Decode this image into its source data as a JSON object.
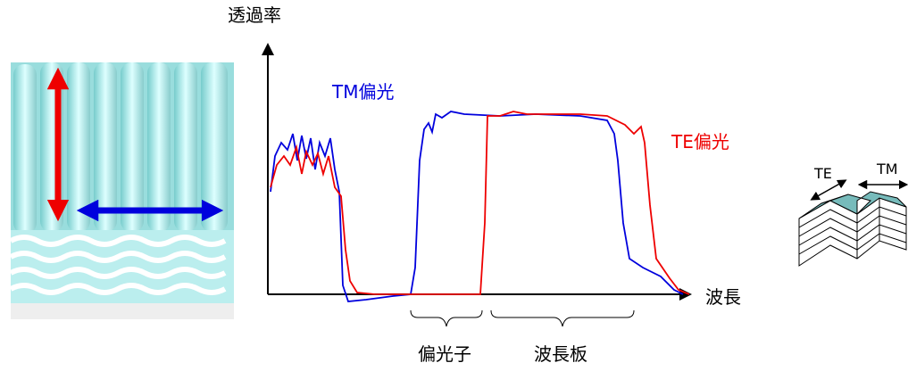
{
  "axes": {
    "y_label": "透過率",
    "x_label": "波長"
  },
  "legend": {
    "tm": "TM偏光",
    "te": "TE偏光"
  },
  "regions": {
    "polarizer": "偏光子",
    "waveplate": "波長板"
  },
  "inset": {
    "te": "TE",
    "tm": "TM"
  }
}
